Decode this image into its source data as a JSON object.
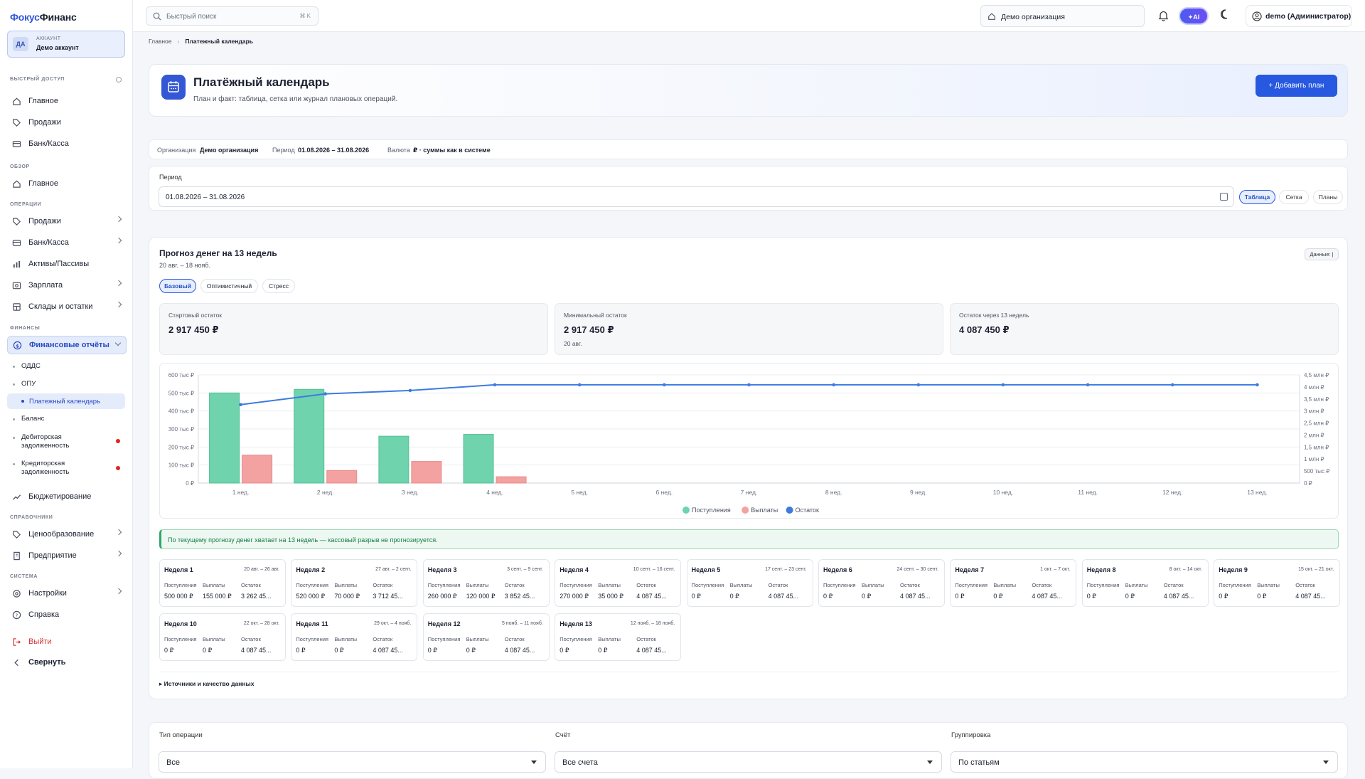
{
  "sidebar": {
    "logo_a": "Фокус",
    "logo_b": "Финанс",
    "account_avatar": "ДА",
    "account_label": "АККАУНТ",
    "account_name": "Демо аккаунт",
    "sections": {
      "quick": "БЫСТРЫЙ ДОСТУП",
      "overview": "ОБЗОР",
      "operations": "ОПЕРАЦИИ",
      "finance": "ФИНАНСЫ",
      "refs": "СПРАВОЧНИКИ",
      "system": "СИСТЕМА"
    },
    "quick": [
      "Главное",
      "Продажи",
      "Банк/Касса"
    ],
    "overview": [
      "Главное"
    ],
    "operations": [
      "Продажи",
      "Банк/Касса",
      "Активы/Пассивы",
      "Зарплата",
      "Склады и остатки"
    ],
    "finance_active": "Финансовые отчёты",
    "finance_sub": [
      "ОДДС",
      "ОПУ",
      "Платежный календарь",
      "Баланс",
      "Дебиторская задолженность",
      "Кредиторская задолженность"
    ],
    "budget": "Бюджетирование",
    "refs": [
      "Ценообразование",
      "Предприятие"
    ],
    "system": [
      "Настройки",
      "Справка"
    ],
    "logout": "Выйти",
    "collapse": "Свернуть"
  },
  "header": {
    "search_placeholder": "Быстрый поиск",
    "search_kbd": "⌘ K",
    "org": "Демо организация",
    "ai": "AI",
    "user": "demo (Администратор)"
  },
  "breadcrumb": {
    "home": "Главное",
    "current": "Платежный календарь"
  },
  "page": {
    "title": "Платёжный календарь",
    "subtitle": "План и факт: таблица, сетка или журнал плановых операций.",
    "add_button": "+ Добавить план"
  },
  "strip": {
    "org_label": "Организация",
    "org_value": "Демо организация",
    "period_label": "Период",
    "period_value": "01.08.2026 – 31.08.2026",
    "currency_label": "Валюта",
    "currency_value": "₽ · суммы как в системе"
  },
  "period": {
    "label": "Период",
    "value": "01.08.2026 – 31.08.2026",
    "views": [
      "Таблица",
      "Сетка",
      "Планы"
    ]
  },
  "forecast": {
    "title": "Прогноз денег на 13 недель",
    "range": "20 авг. – 18 нояб.",
    "badge": "Данные: |",
    "scenarios": [
      "Базовый",
      "Оптимистичный",
      "Стресс"
    ],
    "kpis": [
      {
        "label": "Стартовый остаток",
        "value": "2 917 450 ₽",
        "sub": ""
      },
      {
        "label": "Минимальный остаток",
        "value": "2 917 450 ₽",
        "sub": "20 авг."
      },
      {
        "label": "Остаток через 13 недель",
        "value": "4 087 450 ₽",
        "sub": ""
      }
    ],
    "ok_message": "По текущему прогнозу денег хватает на 13 недель — кассовый разрыв не прогнозируется.",
    "sources": "▸ Источники и качество данных",
    "col_in": "Поступления",
    "col_out": "Выплаты",
    "col_bal": "Остаток",
    "weeks": [
      {
        "name": "Неделя 1",
        "dates": "20 авг. – 26 авг.",
        "in": "500 000 ₽",
        "out": "155 000 ₽",
        "bal": "3 262 45..."
      },
      {
        "name": "Неделя 2",
        "dates": "27 авг. – 2 сент.",
        "in": "520 000 ₽",
        "out": "70 000 ₽",
        "bal": "3 712 45..."
      },
      {
        "name": "Неделя 3",
        "dates": "3 сент. – 9 сент.",
        "in": "260 000 ₽",
        "out": "120 000 ₽",
        "bal": "3 852 45..."
      },
      {
        "name": "Неделя 4",
        "dates": "10 сент. – 16 сент.",
        "in": "270 000 ₽",
        "out": "35 000 ₽",
        "bal": "4 087 45..."
      },
      {
        "name": "Неделя 5",
        "dates": "17 сент. – 23 сент.",
        "in": "0 ₽",
        "out": "0 ₽",
        "bal": "4 087 45..."
      },
      {
        "name": "Неделя 6",
        "dates": "24 сент. – 30 сент.",
        "in": "0 ₽",
        "out": "0 ₽",
        "bal": "4 087 45..."
      },
      {
        "name": "Неделя 7",
        "dates": "1 окт. – 7 окт.",
        "in": "0 ₽",
        "out": "0 ₽",
        "bal": "4 087 45..."
      },
      {
        "name": "Неделя 8",
        "dates": "8 окт. – 14 окт.",
        "in": "0 ₽",
        "out": "0 ₽",
        "bal": "4 087 45..."
      },
      {
        "name": "Неделя 9",
        "dates": "15 окт. – 21 окт.",
        "in": "0 ₽",
        "out": "0 ₽",
        "bal": "4 087 45..."
      },
      {
        "name": "Неделя 10",
        "dates": "22 окт. – 28 окт.",
        "in": "0 ₽",
        "out": "0 ₽",
        "bal": "4 087 45..."
      },
      {
        "name": "Неделя 11",
        "dates": "29 окт. – 4 нояб.",
        "in": "0 ₽",
        "out": "0 ₽",
        "bal": "4 087 45..."
      },
      {
        "name": "Неделя 12",
        "dates": "5 нояб. – 11 нояб.",
        "in": "0 ₽",
        "out": "0 ₽",
        "bal": "4 087 45..."
      },
      {
        "name": "Неделя 13",
        "dates": "12 нояб. – 18 нояб.",
        "in": "0 ₽",
        "out": "0 ₽",
        "bal": "4 087 45..."
      }
    ]
  },
  "chart_data": {
    "type": "bar",
    "categories": [
      "1 нед.",
      "2 нед.",
      "3 нед.",
      "4 нед.",
      "5 нед.",
      "6 нед.",
      "7 нед.",
      "8 нед.",
      "9 нед.",
      "10 нед.",
      "11 нед.",
      "12 нед.",
      "13 нед."
    ],
    "series": [
      {
        "name": "Поступления",
        "type": "bar",
        "axis": "left",
        "color": "#6fd3ad",
        "values": [
          500000,
          520000,
          260000,
          270000,
          0,
          0,
          0,
          0,
          0,
          0,
          0,
          0,
          0
        ]
      },
      {
        "name": "Выплаты",
        "type": "bar",
        "axis": "left",
        "color": "#f4a1a1",
        "values": [
          155000,
          70000,
          120000,
          35000,
          0,
          0,
          0,
          0,
          0,
          0,
          0,
          0,
          0
        ]
      },
      {
        "name": "Остаток",
        "type": "line",
        "axis": "right",
        "color": "#3d7be0",
        "values": [
          3262450,
          3712450,
          3852450,
          4087450,
          4087450,
          4087450,
          4087450,
          4087450,
          4087450,
          4087450,
          4087450,
          4087450,
          4087450
        ]
      }
    ],
    "y_left_ticks": [
      "0 ₽",
      "100 тыс ₽",
      "200 тыс ₽",
      "300 тыс ₽",
      "400 тыс ₽",
      "500 тыс ₽",
      "600 тыс ₽"
    ],
    "y_right_ticks": [
      "0 ₽",
      "500 тыс ₽",
      "1 млн ₽",
      "1,5 млн ₽",
      "2 млн ₽",
      "2,5 млн ₽",
      "3 млн ₽",
      "3,5 млн ₽",
      "4 млн ₽",
      "4,5 млн ₽"
    ],
    "ylim_left": [
      0,
      600000
    ],
    "ylim_right": [
      0,
      4500000
    ],
    "legend": "bottom",
    "grid": true
  },
  "filters": {
    "op_type_label": "Тип операции",
    "op_type_value": "Все",
    "account_label": "Счёт",
    "account_value": "Все счета",
    "group_label": "Группировка",
    "group_value": "По статьям"
  }
}
